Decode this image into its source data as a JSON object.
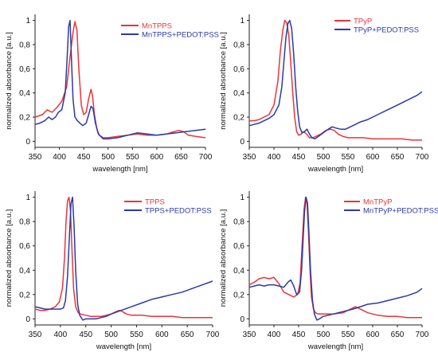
{
  "chart_data": [
    {
      "type": "line",
      "xlabel": "wavelength [nm]",
      "ylabel": "normalized absorbance [a.u.]",
      "xlim": [
        350,
        700
      ],
      "ylim": [
        -0.05,
        1.05
      ],
      "xticks": [
        350,
        400,
        450,
        500,
        550,
        600,
        650,
        700
      ],
      "yticks": [
        0,
        0.2,
        0.4,
        0.6,
        0.8,
        1
      ],
      "ytick_labels": [
        "0",
        "0,2",
        "0,4",
        "0,6",
        "0,8",
        "1"
      ],
      "legend_position": "top-right",
      "series": [
        {
          "name": "MnTPPS",
          "color": "#e8353a",
          "x": [
            350,
            365,
            375,
            385,
            395,
            405,
            415,
            422,
            428,
            432,
            436,
            440,
            445,
            450,
            455,
            460,
            465,
            468,
            472,
            477,
            482,
            490,
            500,
            520,
            540,
            560,
            580,
            600,
            620,
            635,
            645,
            655,
            665,
            680,
            700
          ],
          "y": [
            0.2,
            0.22,
            0.26,
            0.24,
            0.28,
            0.33,
            0.45,
            0.7,
            0.9,
            0.99,
            0.92,
            0.6,
            0.3,
            0.22,
            0.24,
            0.35,
            0.43,
            0.38,
            0.22,
            0.1,
            0.05,
            0.03,
            0.03,
            0.04,
            0.05,
            0.06,
            0.05,
            0.05,
            0.06,
            0.08,
            0.09,
            0.08,
            0.05,
            0.04,
            0.03
          ]
        },
        {
          "name": "MnTPPS+PEDOT:PSS",
          "color": "#2a3aa8",
          "x": [
            350,
            360,
            370,
            378,
            385,
            392,
            398,
            405,
            412,
            416,
            419,
            422,
            425,
            428,
            432,
            437,
            442,
            448,
            455,
            460,
            465,
            469,
            474,
            480,
            490,
            500,
            520,
            540,
            560,
            580,
            600,
            620,
            640,
            660,
            680,
            700
          ],
          "y": [
            0.14,
            0.15,
            0.17,
            0.2,
            0.18,
            0.2,
            0.24,
            0.26,
            0.4,
            0.7,
            0.95,
            1.0,
            0.65,
            0.35,
            0.2,
            0.17,
            0.15,
            0.13,
            0.15,
            0.22,
            0.29,
            0.27,
            0.15,
            0.06,
            0.02,
            0.02,
            0.03,
            0.05,
            0.07,
            0.06,
            0.05,
            0.06,
            0.07,
            0.08,
            0.09,
            0.1
          ]
        }
      ]
    },
    {
      "type": "line",
      "xlabel": "wavelength [nm]",
      "ylabel": "normalized absorbance [a.u.]",
      "xlim": [
        350,
        700
      ],
      "ylim": [
        -0.05,
        1.05
      ],
      "xticks": [
        350,
        400,
        450,
        500,
        550,
        600,
        650,
        700
      ],
      "yticks": [
        0,
        0.2,
        0.4,
        0.6,
        0.8,
        1
      ],
      "ytick_labels": [
        "0",
        "0,2",
        "0,4",
        "0,6",
        "0,8",
        "1"
      ],
      "legend_position": "top-right",
      "series": [
        {
          "name": "TPyP",
          "color": "#e8353a",
          "x": [
            350,
            360,
            370,
            380,
            390,
            400,
            408,
            413,
            418,
            422,
            426,
            430,
            434,
            438,
            442,
            446,
            450,
            455,
            460,
            466,
            472,
            478,
            485,
            495,
            505,
            515,
            522,
            530,
            540,
            550,
            560,
            580,
            600,
            620,
            640,
            660,
            680,
            700
          ],
          "y": [
            0.17,
            0.17,
            0.18,
            0.2,
            0.22,
            0.3,
            0.5,
            0.75,
            0.92,
            1.0,
            0.98,
            0.88,
            0.65,
            0.4,
            0.2,
            0.08,
            0.05,
            0.06,
            0.08,
            0.06,
            0.03,
            0.03,
            0.04,
            0.06,
            0.09,
            0.1,
            0.09,
            0.06,
            0.04,
            0.03,
            0.03,
            0.03,
            0.02,
            0.02,
            0.02,
            0.02,
            0.01,
            0.01
          ]
        },
        {
          "name": "TPyP+PEDOT:PSS",
          "color": "#2a3aa8",
          "x": [
            350,
            360,
            370,
            380,
            390,
            400,
            410,
            416,
            420,
            424,
            428,
            432,
            436,
            440,
            444,
            448,
            452,
            457,
            462,
            467,
            472,
            477,
            483,
            490,
            500,
            510,
            518,
            525,
            535,
            545,
            555,
            565,
            575,
            590,
            610,
            630,
            650,
            670,
            690,
            700
          ],
          "y": [
            0.13,
            0.14,
            0.15,
            0.17,
            0.19,
            0.22,
            0.3,
            0.45,
            0.65,
            0.85,
            0.97,
            1.0,
            0.93,
            0.72,
            0.45,
            0.25,
            0.12,
            0.07,
            0.08,
            0.1,
            0.06,
            0.03,
            0.02,
            0.04,
            0.07,
            0.1,
            0.12,
            0.11,
            0.1,
            0.1,
            0.12,
            0.14,
            0.16,
            0.18,
            0.22,
            0.26,
            0.3,
            0.34,
            0.38,
            0.41
          ]
        }
      ]
    },
    {
      "type": "line",
      "xlabel": "wavelength [nm]",
      "ylabel": "normalized absorbance [a.u.]",
      "xlim": [
        350,
        700
      ],
      "ylim": [
        -0.05,
        1.05
      ],
      "xticks": [
        350,
        400,
        450,
        500,
        550,
        600,
        650,
        700
      ],
      "yticks": [
        0,
        0.2,
        0.4,
        0.6,
        0.8,
        1
      ],
      "ytick_labels": [
        "0",
        "0,2",
        "0,4",
        "0,6",
        "0,8",
        "1"
      ],
      "legend_position": "top-right",
      "series": [
        {
          "name": "TPPS",
          "color": "#e8353a",
          "x": [
            350,
            360,
            370,
            380,
            390,
            398,
            404,
            408,
            411,
            414,
            417,
            420,
            423,
            426,
            430,
            435,
            440,
            450,
            460,
            470,
            480,
            490,
            500,
            510,
            516,
            522,
            530,
            540,
            560,
            580,
            600,
            620,
            640,
            660,
            680,
            700
          ],
          "y": [
            0.08,
            0.07,
            0.07,
            0.08,
            0.1,
            0.14,
            0.25,
            0.5,
            0.8,
            0.97,
            1.0,
            0.88,
            0.55,
            0.25,
            0.1,
            0.05,
            0.04,
            0.03,
            0.02,
            0.02,
            0.02,
            0.03,
            0.04,
            0.06,
            0.07,
            0.06,
            0.04,
            0.03,
            0.03,
            0.02,
            0.02,
            0.02,
            0.01,
            0.01,
            0.01,
            0.01
          ]
        },
        {
          "name": "TPPS+PEDOT:PSS",
          "color": "#2a3aa8",
          "x": [
            350,
            360,
            370,
            380,
            390,
            400,
            406,
            410,
            414,
            418,
            421,
            424,
            427,
            430,
            434,
            438,
            444,
            450,
            460,
            470,
            480,
            490,
            500,
            520,
            540,
            560,
            580,
            600,
            620,
            640,
            660,
            680,
            700
          ],
          "y": [
            0.1,
            0.09,
            0.08,
            0.08,
            0.08,
            0.08,
            0.09,
            0.15,
            0.35,
            0.7,
            0.95,
            1.0,
            0.75,
            0.4,
            0.12,
            0.03,
            -0.01,
            0.0,
            0.0,
            0.0,
            0.01,
            0.02,
            0.04,
            0.07,
            0.1,
            0.13,
            0.16,
            0.18,
            0.2,
            0.22,
            0.25,
            0.28,
            0.31
          ]
        }
      ]
    },
    {
      "type": "line",
      "xlabel": "wavelength [nm]",
      "ylabel": "normalized absorbance [a.u.]",
      "xlim": [
        350,
        700
      ],
      "ylim": [
        -0.05,
        1.05
      ],
      "xticks": [
        350,
        400,
        450,
        500,
        550,
        600,
        650,
        700
      ],
      "yticks": [
        0,
        0.2,
        0.4,
        0.6,
        0.8,
        1
      ],
      "ytick_labels": [
        "0",
        "0,2",
        "0,4",
        "0,6",
        "0,8",
        "1"
      ],
      "legend_position": "top-right",
      "series": [
        {
          "name": "MnTPyP",
          "color": "#e8353a",
          "x": [
            350,
            360,
            370,
            380,
            390,
            400,
            410,
            420,
            430,
            440,
            448,
            453,
            457,
            461,
            464,
            467,
            470,
            473,
            476,
            480,
            484,
            490,
            500,
            520,
            540,
            555,
            565,
            575,
            590,
            610,
            630,
            650,
            670,
            690,
            700
          ],
          "y": [
            0.28,
            0.3,
            0.33,
            0.34,
            0.33,
            0.34,
            0.29,
            0.22,
            0.2,
            0.18,
            0.2,
            0.3,
            0.6,
            0.9,
            1.0,
            0.95,
            0.7,
            0.4,
            0.18,
            0.08,
            0.05,
            0.04,
            0.04,
            0.04,
            0.05,
            0.08,
            0.1,
            0.08,
            0.05,
            0.03,
            0.02,
            0.02,
            0.01,
            0.01,
            0.01
          ]
        },
        {
          "name": "MnTPyP+PEDOT:PSS",
          "color": "#2a3aa8",
          "x": [
            350,
            360,
            370,
            380,
            390,
            400,
            410,
            420,
            428,
            434,
            440,
            446,
            452,
            456,
            459,
            462,
            465,
            468,
            471,
            474,
            478,
            482,
            487,
            492,
            500,
            520,
            540,
            560,
            575,
            590,
            610,
            630,
            650,
            670,
            690,
            700
          ],
          "y": [
            0.26,
            0.27,
            0.28,
            0.27,
            0.28,
            0.28,
            0.27,
            0.26,
            0.3,
            0.32,
            0.27,
            0.2,
            0.22,
            0.4,
            0.65,
            0.88,
            1.0,
            0.95,
            0.7,
            0.4,
            0.15,
            0.04,
            -0.01,
            0.0,
            0.02,
            0.04,
            0.06,
            0.08,
            0.1,
            0.12,
            0.13,
            0.15,
            0.17,
            0.19,
            0.22,
            0.25
          ]
        }
      ]
    }
  ]
}
